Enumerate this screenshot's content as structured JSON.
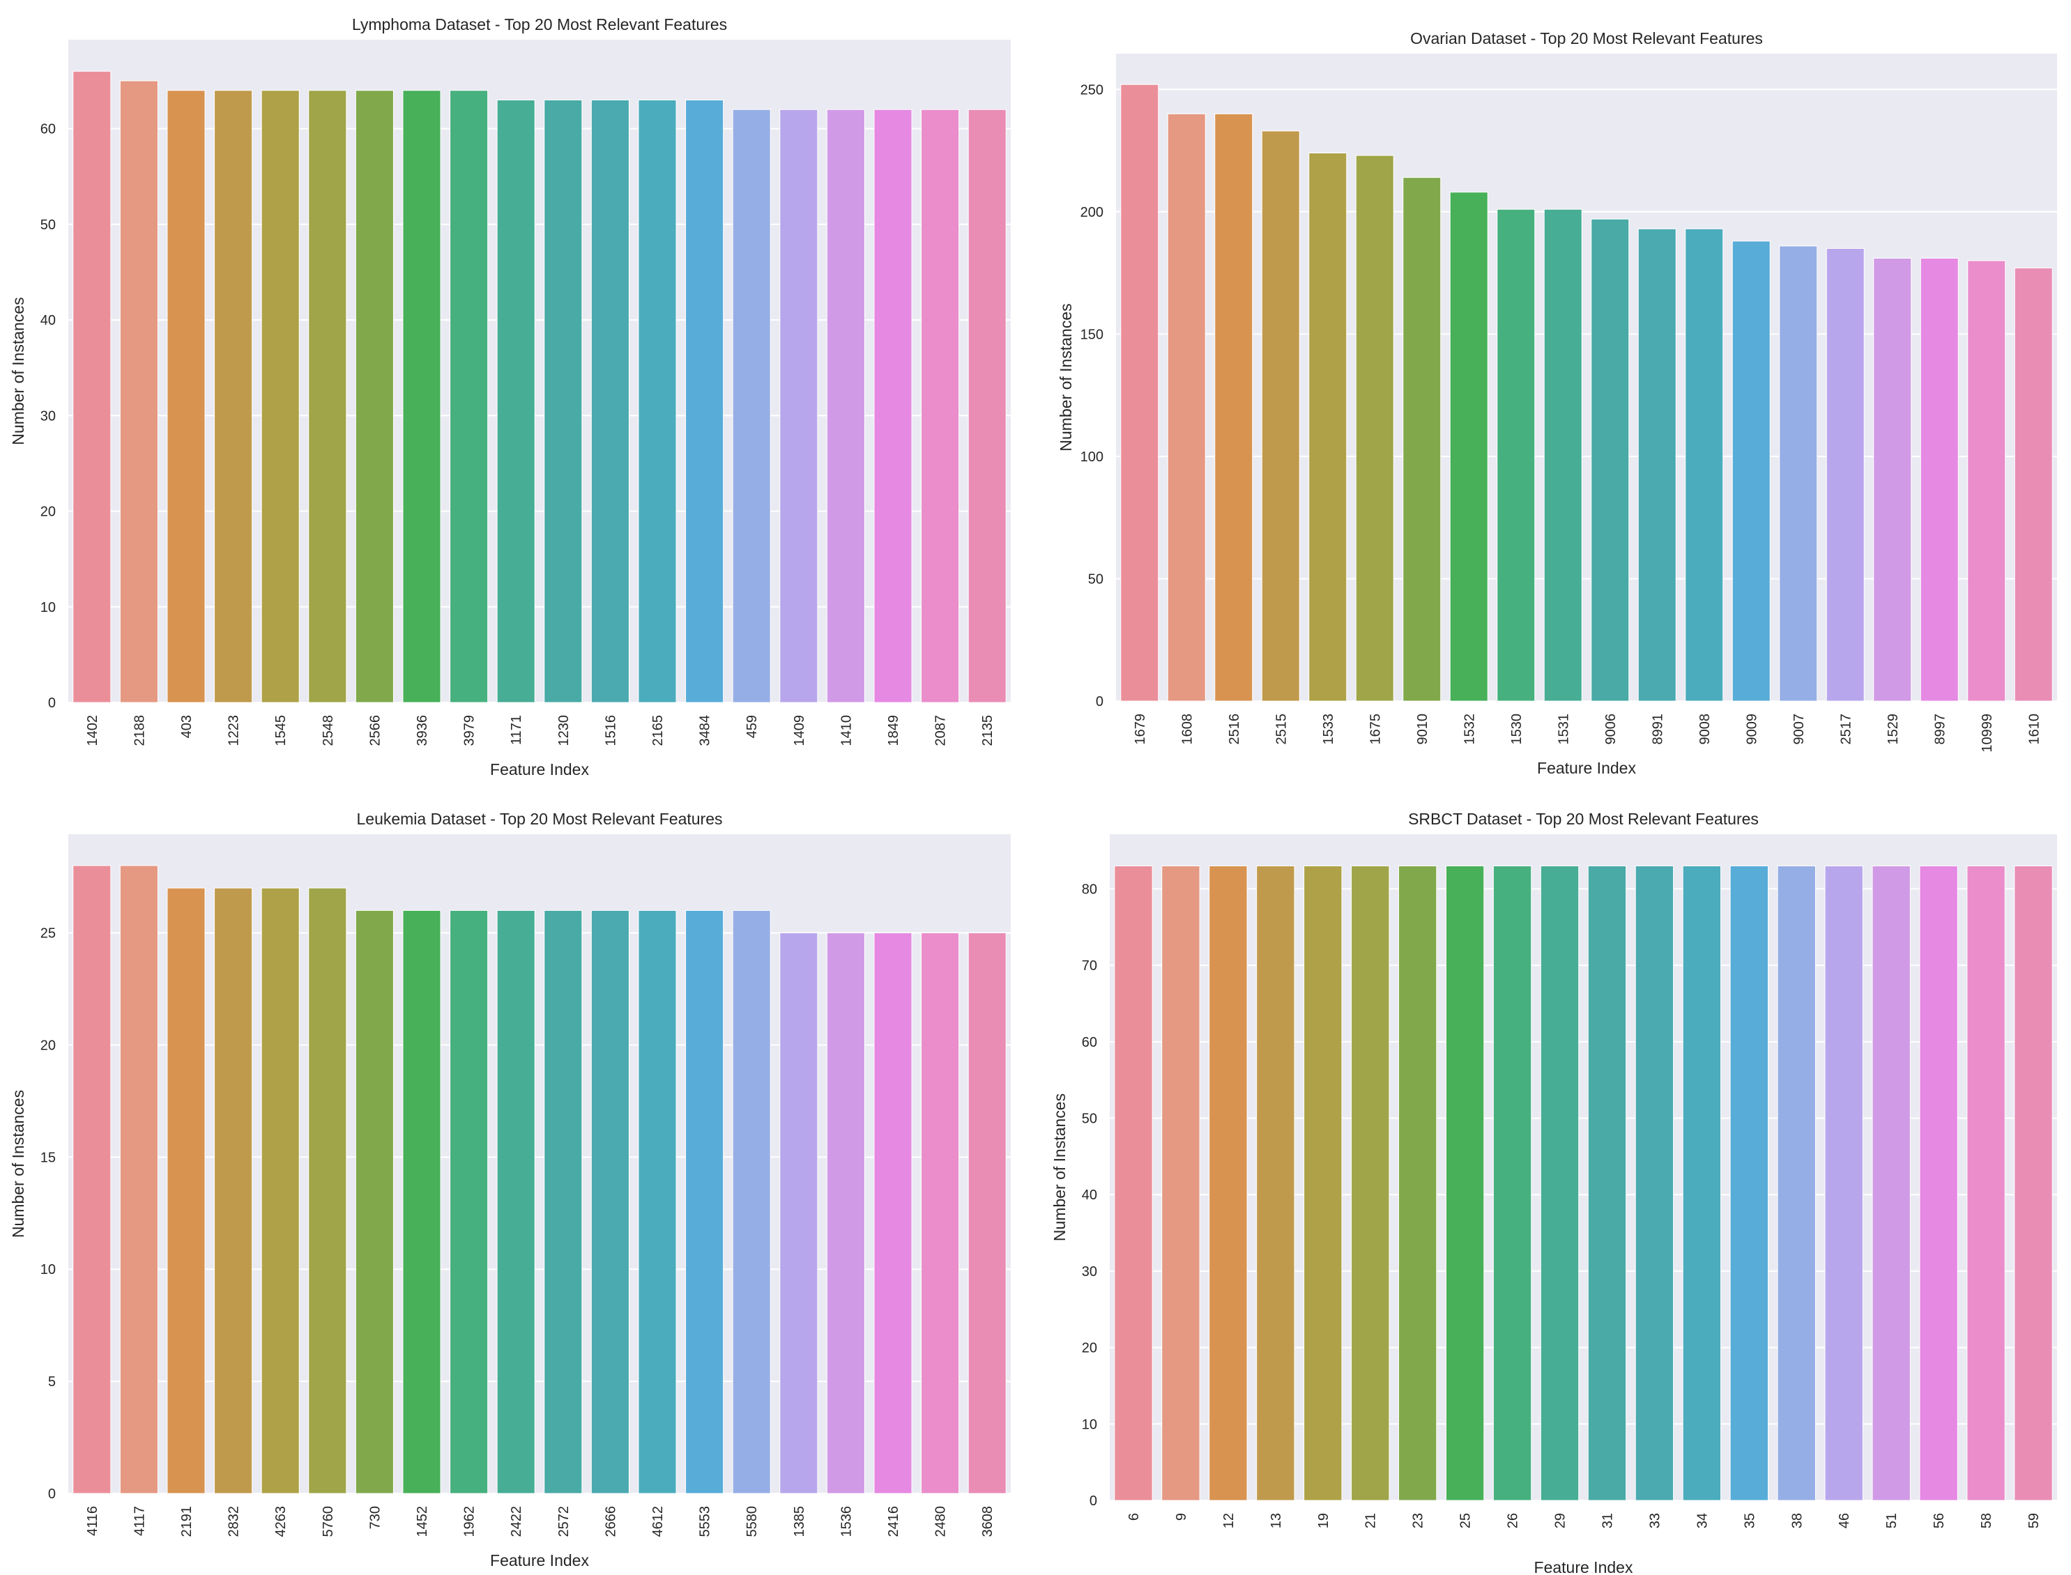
{
  "palette": [
    "#ea8f9a",
    "#e59882",
    "#d89350",
    "#c09a4c",
    "#aea147",
    "#9fa548",
    "#81a94c",
    "#47b058",
    "#47b07f",
    "#47ad95",
    "#49aaa6",
    "#4aaab0",
    "#4bacbd",
    "#58acd8",
    "#96aee6",
    "#b8a6ec",
    "#d19ae6",
    "#e589e3",
    "#ea8dca",
    "#e98db5"
  ],
  "chart_data": [
    {
      "type": "bar",
      "title": "Lymphoma Dataset - Top 20 Most Relevant Features",
      "xlabel": "Feature Index",
      "ylabel": "Number of Instances",
      "categories": [
        "1402",
        "2188",
        "403",
        "1223",
        "1545",
        "2548",
        "2566",
        "3936",
        "3979",
        "1171",
        "1230",
        "1516",
        "2165",
        "3484",
        "459",
        "1409",
        "1410",
        "1849",
        "2087",
        "2135"
      ],
      "values": [
        66,
        65,
        64,
        64,
        64,
        64,
        64,
        64,
        64,
        63,
        63,
        63,
        63,
        63,
        62,
        62,
        62,
        62,
        62,
        62
      ],
      "yticks": [
        0,
        10,
        20,
        30,
        40,
        50,
        60
      ],
      "ylim": [
        0,
        69.3
      ],
      "grid": true
    },
    {
      "type": "bar",
      "title": "Ovarian Dataset - Top 20 Most Relevant Features",
      "xlabel": "Feature Index",
      "ylabel": "Number of Instances",
      "categories": [
        "1679",
        "1608",
        "2516",
        "2515",
        "1533",
        "1675",
        "9010",
        "1532",
        "1530",
        "1531",
        "9006",
        "8991",
        "9008",
        "9009",
        "9007",
        "2517",
        "1529",
        "8997",
        "10999",
        "1610"
      ],
      "values": [
        252,
        240,
        240,
        233,
        224,
        223,
        214,
        208,
        201,
        201,
        197,
        193,
        193,
        188,
        186,
        185,
        181,
        181,
        180,
        177
      ],
      "yticks": [
        0,
        50,
        100,
        150,
        200,
        250
      ],
      "ylim": [
        0,
        264.6
      ],
      "grid": true
    },
    {
      "type": "bar",
      "title": "Leukemia Dataset - Top 20 Most Relevant Features",
      "xlabel": "Feature Index",
      "ylabel": "Number of Instances",
      "categories": [
        "4116",
        "4117",
        "2191",
        "2832",
        "4263",
        "5760",
        "730",
        "1452",
        "1962",
        "2422",
        "2572",
        "2666",
        "4612",
        "5553",
        "5580",
        "1385",
        "1536",
        "2416",
        "2480",
        "3608"
      ],
      "values": [
        28,
        28,
        27,
        27,
        27,
        27,
        26,
        26,
        26,
        26,
        26,
        26,
        26,
        26,
        26,
        25,
        25,
        25,
        25,
        25
      ],
      "yticks": [
        0,
        5,
        10,
        15,
        20,
        25
      ],
      "ylim": [
        0,
        29.4
      ],
      "grid": true
    },
    {
      "type": "bar",
      "title": "SRBCT Dataset - Top 20 Most Relevant Features",
      "xlabel": "Feature Index",
      "ylabel": "Number of Instances",
      "categories": [
        "6",
        "9",
        "12",
        "13",
        "19",
        "21",
        "23",
        "25",
        "26",
        "29",
        "31",
        "33",
        "34",
        "35",
        "38",
        "46",
        "51",
        "56",
        "58",
        "59"
      ],
      "values": [
        83,
        83,
        83,
        83,
        83,
        83,
        83,
        83,
        83,
        83,
        83,
        83,
        83,
        83,
        83,
        83,
        83,
        83,
        83,
        83
      ],
      "yticks": [
        0,
        10,
        20,
        30,
        40,
        50,
        60,
        70,
        80
      ],
      "ylim": [
        0,
        87.15
      ],
      "grid": true
    }
  ]
}
